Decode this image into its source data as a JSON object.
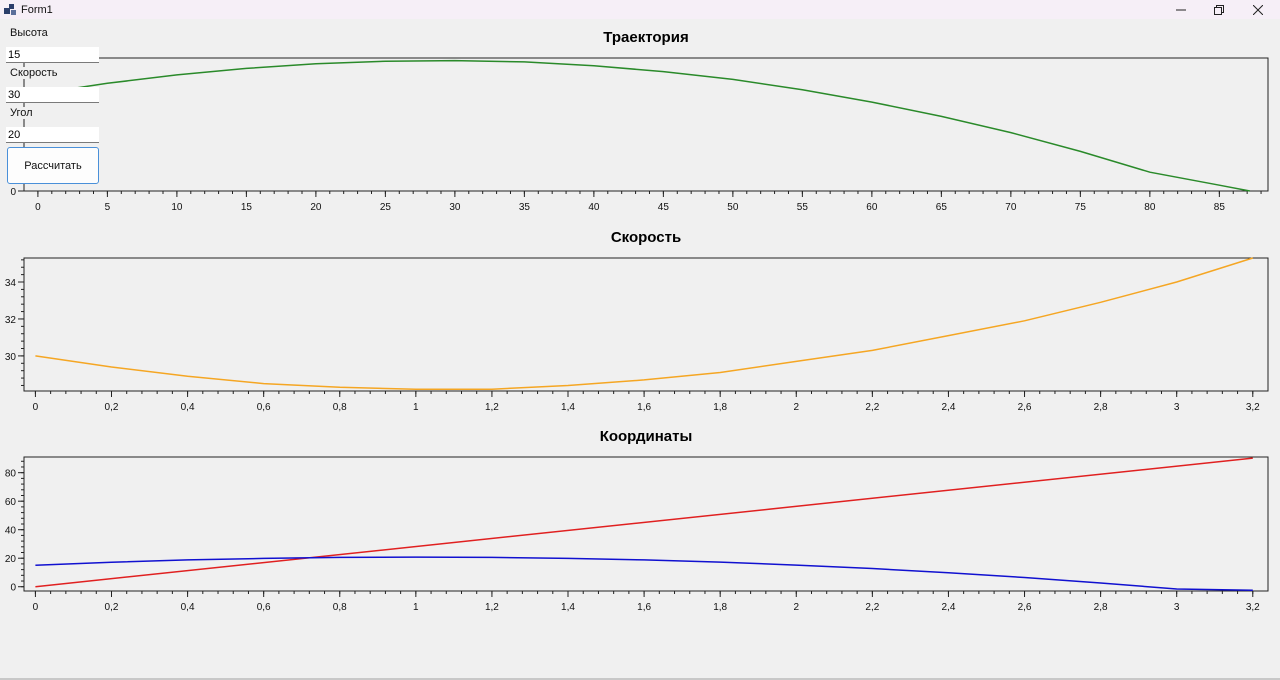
{
  "window": {
    "title": "Form1",
    "icon": "app-form-icon"
  },
  "controls": {
    "height_label": "Высота",
    "height_value": "15",
    "speed_label": "Скорость",
    "speed_value": "30",
    "angle_label": "Угол",
    "angle_value": "20",
    "calc_button": "Рассчитать"
  },
  "chart_data": [
    {
      "type": "line",
      "title": "Траектория",
      "xlim": [
        -1,
        88.5
      ],
      "ylim": [
        0,
        20.5
      ],
      "x_ticks": [
        0,
        5,
        10,
        15,
        20,
        25,
        30,
        35,
        40,
        45,
        50,
        55,
        60,
        65,
        70,
        75,
        80,
        85
      ],
      "y_ticks": [
        0
      ],
      "series": [
        {
          "color": "#2a8a2a",
          "x": [
            0,
            5,
            10,
            15,
            20,
            25,
            30,
            35,
            40,
            45,
            50,
            55,
            60,
            65,
            70,
            75,
            80,
            85,
            87.2
          ],
          "y": [
            15,
            16.6,
            17.9,
            18.9,
            19.6,
            20.0,
            20.1,
            19.9,
            19.3,
            18.4,
            17.2,
            15.6,
            13.7,
            11.5,
            9.0,
            6.1,
            2.9,
            0.9,
            0
          ]
        }
      ],
      "grid": false,
      "legend": "none"
    },
    {
      "type": "line",
      "title": "Скорость",
      "xlim": [
        -0.03,
        3.24
      ],
      "ylim": [
        28.1,
        35.3
      ],
      "x_ticks": [
        0,
        0.2,
        0.4,
        0.6,
        0.8,
        1,
        1.2,
        1.4,
        1.6,
        1.8,
        2,
        2.2,
        2.4,
        2.6,
        2.8,
        3,
        3.2
      ],
      "x_tick_labels": [
        "0",
        "0,2",
        "0,4",
        "0,6",
        "0,8",
        "1",
        "1,2",
        "1,4",
        "1,6",
        "1,8",
        "2",
        "2,2",
        "2,4",
        "2,6",
        "2,8",
        "3",
        "3,2"
      ],
      "y_ticks": [
        30,
        32,
        34
      ],
      "series": [
        {
          "color": "#f5a623",
          "x": [
            0,
            0.2,
            0.4,
            0.6,
            0.8,
            1.0,
            1.2,
            1.4,
            1.6,
            1.8,
            2.0,
            2.2,
            2.4,
            2.6,
            2.8,
            3.0,
            3.2
          ],
          "y": [
            30.0,
            29.4,
            28.9,
            28.5,
            28.3,
            28.2,
            28.2,
            28.4,
            28.7,
            29.1,
            29.7,
            30.3,
            31.1,
            31.9,
            32.9,
            34.0,
            35.3
          ]
        }
      ],
      "grid": false,
      "legend": "none"
    },
    {
      "type": "line",
      "title": "Координаты",
      "xlim": [
        -0.03,
        3.24
      ],
      "ylim": [
        -3,
        91
      ],
      "x_ticks": [
        0,
        0.2,
        0.4,
        0.6,
        0.8,
        1,
        1.2,
        1.4,
        1.6,
        1.8,
        2,
        2.2,
        2.4,
        2.6,
        2.8,
        3,
        3.2
      ],
      "x_tick_labels": [
        "0",
        "0,2",
        "0,4",
        "0,6",
        "0,8",
        "1",
        "1,2",
        "1,4",
        "1,6",
        "1,8",
        "2",
        "2,2",
        "2,4",
        "2,6",
        "2,8",
        "3",
        "3,2"
      ],
      "y_ticks": [
        0,
        20,
        40,
        60,
        80
      ],
      "series": [
        {
          "color": "#e02020",
          "x": [
            0,
            3.2
          ],
          "y": [
            0,
            90.2
          ]
        },
        {
          "color": "#1010d0",
          "x": [
            0,
            0.2,
            0.4,
            0.6,
            0.8,
            1.0,
            1.2,
            1.4,
            1.6,
            1.8,
            2.0,
            2.2,
            2.4,
            2.6,
            2.8,
            3.0,
            3.2
          ],
          "y": [
            15,
            17.2,
            18.8,
            19.9,
            20.6,
            20.8,
            20.6,
            19.9,
            18.8,
            17.3,
            15.2,
            12.8,
            9.8,
            6.5,
            2.6,
            -1.6,
            -2.5
          ]
        }
      ],
      "grid": false,
      "legend": "none"
    }
  ]
}
